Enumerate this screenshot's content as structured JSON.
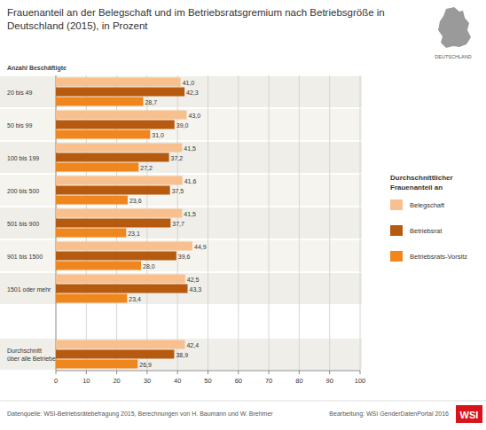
{
  "chart_data": {
    "type": "bar",
    "orientation": "horizontal",
    "title": "Frauenanteil an der Belegschaft und im Betriebsratsgremium nach Betriebsgröße in\nDeutschland (2015), in Prozent",
    "ylabel": "Anzahl Beschäftigte",
    "legend_title": "Durchschnittlicher\nFrauenanteil an",
    "legend": "right",
    "grid": true,
    "data_labels": true,
    "categories": [
      "20 bis 49",
      "50 bis 99",
      "100 bis 199",
      "200 bis 500",
      "501 bis 900",
      "901 bis 1500",
      "1501 oder mehr",
      null,
      "Durchschnitt\nüber alle Betriebe"
    ],
    "series": [
      {
        "name": "Belegschaft",
        "color": "#f8c08e",
        "values": [
          41.0,
          43.0,
          41.5,
          41.6,
          41.5,
          44.9,
          42.5,
          null,
          42.4
        ],
        "value_labels": [
          "41,0",
          "43,0",
          "41,5",
          "41,6",
          "41,5",
          "44,9",
          "42,5",
          null,
          "42,4"
        ]
      },
      {
        "name": "Betriebsrat",
        "color": "#b65a10",
        "values": [
          42.3,
          39.0,
          37.2,
          37.5,
          37.7,
          39.6,
          43.3,
          null,
          38.9
        ],
        "value_labels": [
          "42,3",
          "39,0",
          "37,2",
          "37,5",
          "37,7",
          "39,6",
          "43,3",
          null,
          "38,9"
        ]
      },
      {
        "name": "Betriebsrats-Vorsitz",
        "color": "#f0861e",
        "values": [
          28.7,
          31.0,
          27.2,
          23.6,
          23.1,
          28.0,
          23.4,
          null,
          26.9
        ],
        "value_labels": [
          "28,7",
          "31,0",
          "27,2",
          "23,6",
          "23,1",
          "28,0",
          "23,4",
          null,
          "26,9"
        ]
      }
    ],
    "xlim": [
      0,
      100
    ],
    "xticks": [
      0,
      10,
      20,
      30,
      40,
      50,
      60,
      70,
      80,
      90,
      100
    ],
    "annotations": [
      "DEUTSCHLAND",
      "Datenquelle: WSI-Betriebsrätebefragung 2015, Berechnungen von H. Baumann und W. Brehmer",
      "Bearbeitung: WSI GenderDatenPortal 2016",
      "WSI"
    ]
  }
}
